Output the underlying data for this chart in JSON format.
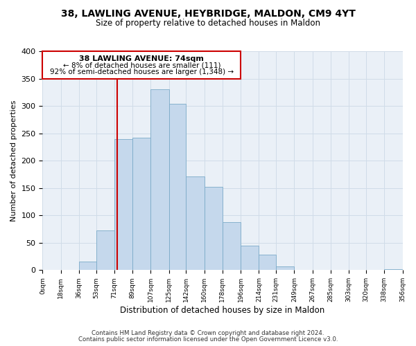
{
  "title": "38, LAWLING AVENUE, HEYBRIDGE, MALDON, CM9 4YT",
  "subtitle": "Size of property relative to detached houses in Maldon",
  "xlabel": "Distribution of detached houses by size in Maldon",
  "ylabel": "Number of detached properties",
  "bar_edges": [
    0,
    18,
    36,
    53,
    71,
    89,
    107,
    125,
    142,
    160,
    178,
    196,
    214,
    231,
    249,
    267,
    285,
    303,
    320,
    338,
    356
  ],
  "bar_heights": [
    0,
    0,
    16,
    73,
    239,
    242,
    331,
    304,
    171,
    152,
    88,
    45,
    28,
    7,
    0,
    0,
    0,
    0,
    0,
    2
  ],
  "tick_labels": [
    "0sqm",
    "18sqm",
    "36sqm",
    "53sqm",
    "71sqm",
    "89sqm",
    "107sqm",
    "125sqm",
    "142sqm",
    "160sqm",
    "178sqm",
    "196sqm",
    "214sqm",
    "231sqm",
    "249sqm",
    "267sqm",
    "285sqm",
    "303sqm",
    "320sqm",
    "338sqm",
    "356sqm"
  ],
  "bar_color": "#c5d8ec",
  "bar_edge_color": "#7aaac8",
  "property_line_x": 74,
  "annotation_title": "38 LAWLING AVENUE: 74sqm",
  "annotation_line1": "← 8% of detached houses are smaller (111)",
  "annotation_line2": "92% of semi-detached houses are larger (1,348) →",
  "box_color": "#cc0000",
  "ylim": [
    0,
    400
  ],
  "yticks": [
    0,
    50,
    100,
    150,
    200,
    250,
    300,
    350,
    400
  ],
  "footer1": "Contains HM Land Registry data © Crown copyright and database right 2024.",
  "footer2": "Contains public sector information licensed under the Open Government Licence v3.0.",
  "grid_color": "#d0dce8",
  "bg_color": "#eaf0f7"
}
